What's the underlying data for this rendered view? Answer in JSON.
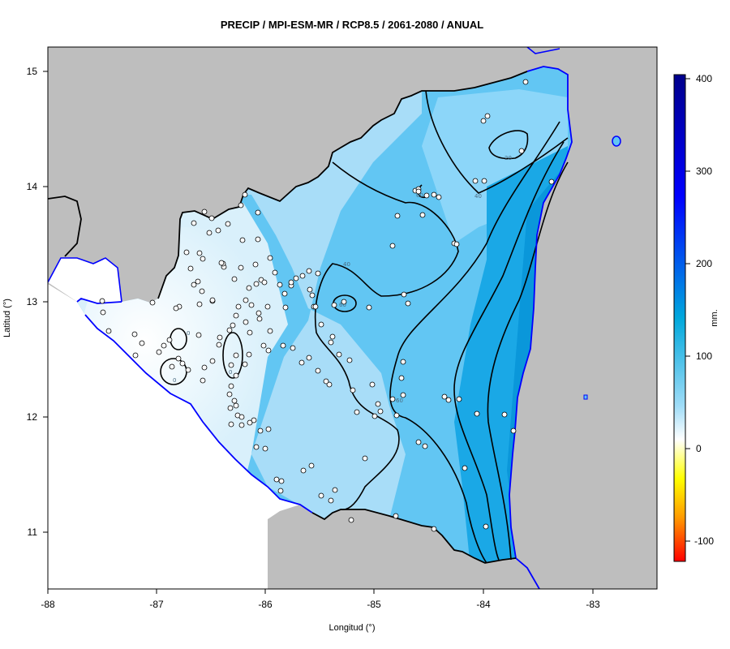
{
  "title": "PRECIP / MPI-ESM-MR / RCP8.5 / 2061-2080 / ANUAL",
  "x_axis": {
    "label": "Longitud (°)",
    "ticks": [
      "-88",
      "-87",
      "-86",
      "-85",
      "-84",
      "-83"
    ]
  },
  "y_axis": {
    "label": "Latitud (°)",
    "ticks": [
      "15",
      "14",
      "13",
      "12",
      "11"
    ]
  },
  "colorbar": {
    "unit": "mm.",
    "ticks": [
      "400",
      "300",
      "200",
      "100",
      "0",
      "-100"
    ],
    "colors": [
      "#00008b",
      "#0000ff",
      "#00a2d8",
      "#7fd0f5",
      "#ffffff",
      "#ffff00",
      "#ff8c00",
      "#ff0000"
    ]
  },
  "contour_labels": [
    "20",
    "40",
    "40",
    "60",
    "60",
    "60",
    "0",
    "0",
    "0"
  ],
  "colors": {
    "land_outside": "#bebebe",
    "coastline": "#0000ff",
    "border": "#000000"
  }
}
